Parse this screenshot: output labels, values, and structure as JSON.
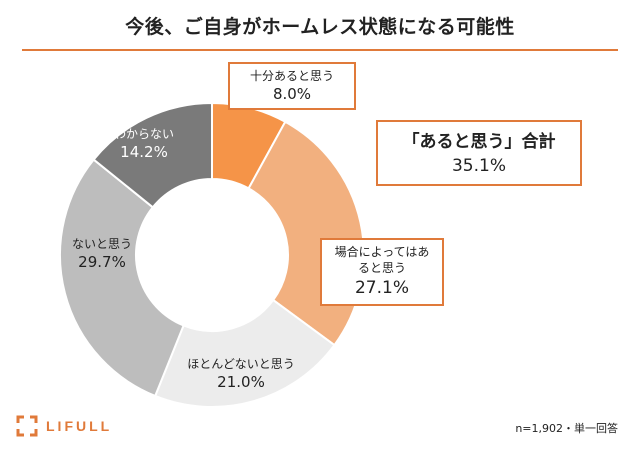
{
  "title": "今後、ご自身がホームレス状態になる可能性",
  "summary": {
    "label": "「あると思う」合計",
    "value": "35.1%"
  },
  "note": "n=1,902・単一回答",
  "logo": {
    "text": "LIFULL",
    "icon": "lifull-bracket-logo"
  },
  "colors": {
    "accent": "#e07a3a"
  },
  "chart_data": {
    "type": "pie",
    "donut": true,
    "start_angle_deg": 0,
    "direction": "clockwise",
    "slices": [
      {
        "label": "十分あると思う",
        "value": 8.0,
        "display": "8.0%",
        "color": "#f59448",
        "boxed": true
      },
      {
        "label": "場合によってはあると思う",
        "value": 27.1,
        "display": "27.1%",
        "color": "#f2b07f",
        "boxed": true
      },
      {
        "label": "ほとんどないと思う",
        "value": 21.0,
        "display": "21.0%",
        "color": "#ececec",
        "boxed": false
      },
      {
        "label": "ないと思う",
        "value": 29.7,
        "display": "29.7%",
        "color": "#bdbdbd",
        "boxed": false
      },
      {
        "label": "わからない",
        "value": 14.2,
        "display": "14.2%",
        "color": "#7a7a7a",
        "boxed": false
      }
    ]
  }
}
